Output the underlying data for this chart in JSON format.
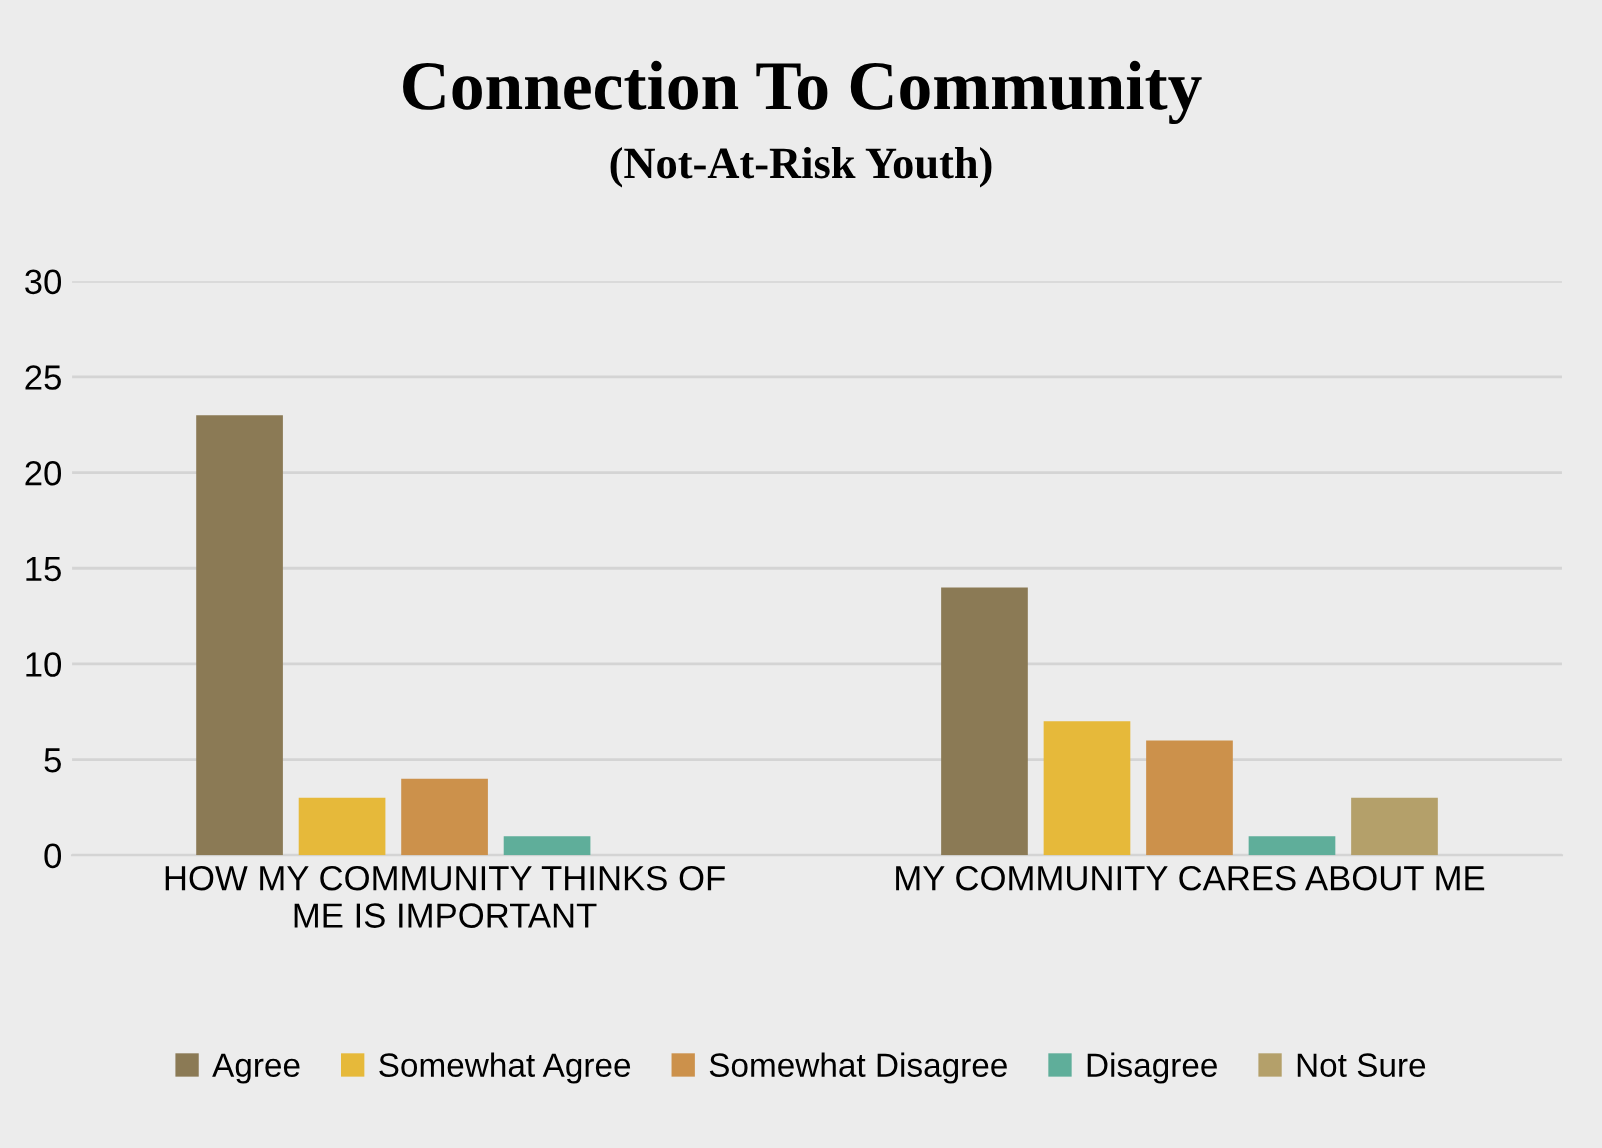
{
  "chart_data": {
    "type": "bar",
    "title": "Connection To Community",
    "subtitle": "(Not-At-Risk Youth)",
    "categories": [
      "HOW MY COMMUNITY THINKS OF\nME IS IMPORTANT",
      "MY COMMUNITY CARES ABOUT ME"
    ],
    "series": [
      {
        "name": "Agree",
        "color": "#8b7a55",
        "values": [
          23,
          14
        ]
      },
      {
        "name": "Somewhat Agree",
        "color": "#e6b93a",
        "values": [
          3,
          7
        ]
      },
      {
        "name": "Somewhat Disagree",
        "color": "#cc914b",
        "values": [
          4,
          6
        ]
      },
      {
        "name": "Disagree",
        "color": "#5fae9a",
        "values": [
          1,
          1
        ]
      },
      {
        "name": "Not Sure",
        "color": "#b4a06a",
        "values": [
          null,
          3
        ]
      }
    ],
    "ylim": [
      0,
      30
    ],
    "yticks": [
      0,
      5,
      10,
      15,
      20,
      25,
      30
    ],
    "grid": "y",
    "legend": "bottom"
  }
}
